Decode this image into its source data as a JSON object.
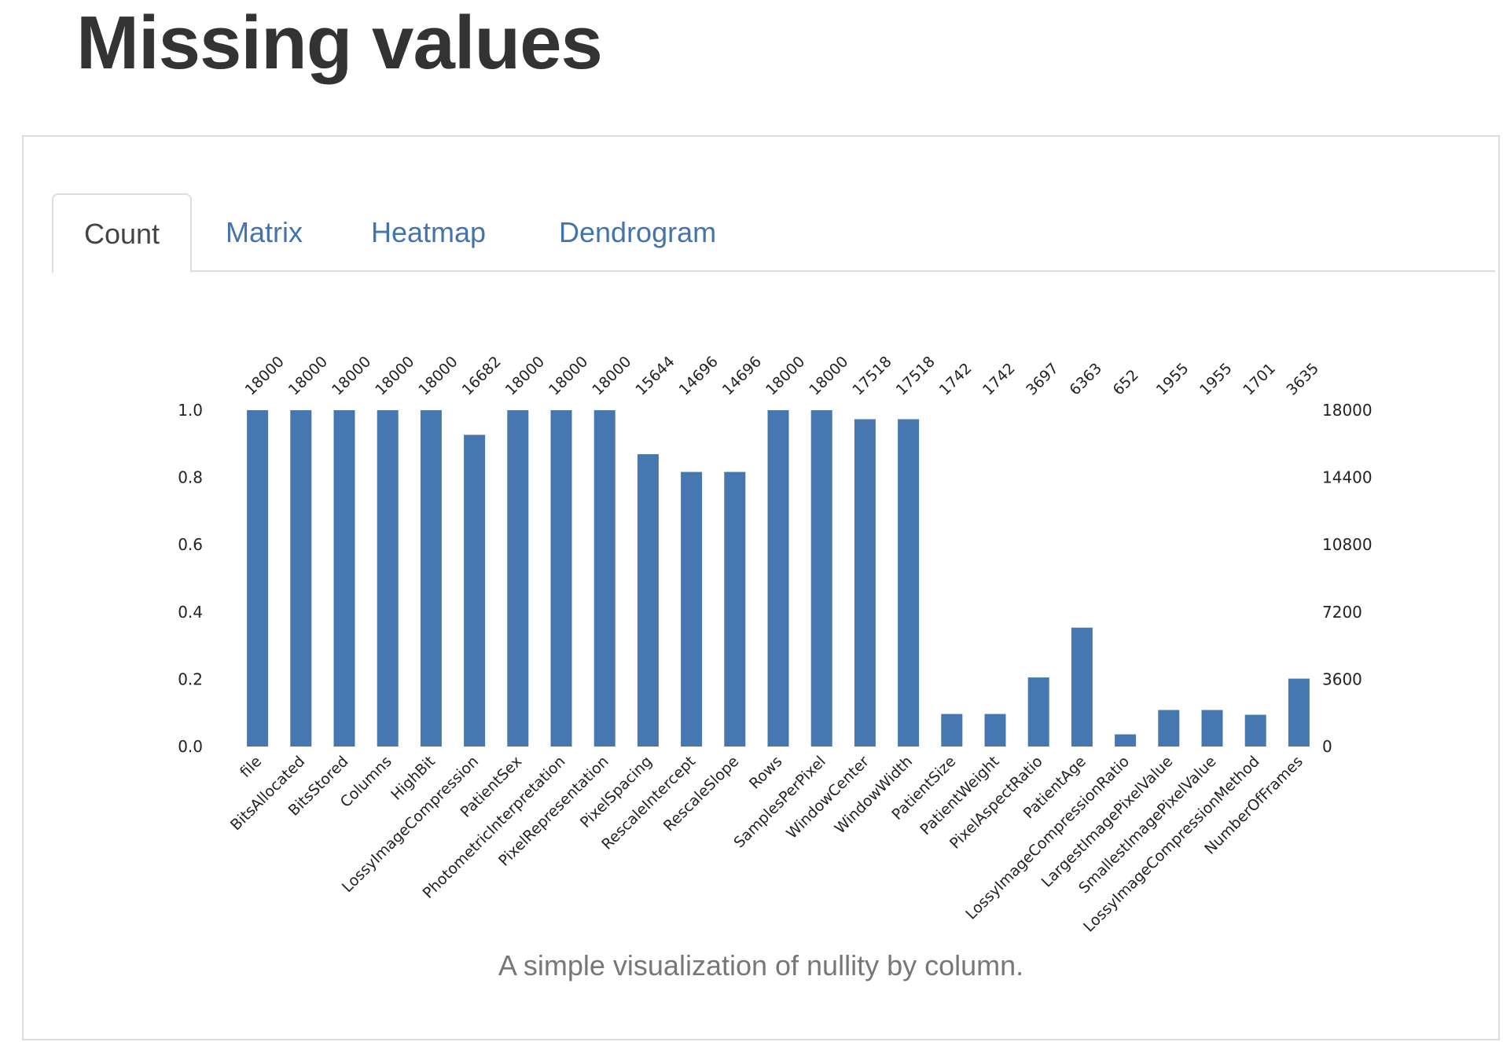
{
  "page": {
    "title": "Missing values"
  },
  "tabs": [
    {
      "label": "Count",
      "active": true
    },
    {
      "label": "Matrix",
      "active": false
    },
    {
      "label": "Heatmap",
      "active": false
    },
    {
      "label": "Dendrogram",
      "active": false
    }
  ],
  "colors": {
    "bar": "#4677b0",
    "link": "#4374ae",
    "text": "#333333",
    "caption": "#777777",
    "border": "#dddddd"
  },
  "caption": "A simple visualization of nullity by column.",
  "chart_data": {
    "type": "bar",
    "title": "",
    "xlabel": "",
    "ylabel": "",
    "categories": [
      "file",
      "BitsAllocated",
      "BitsStored",
      "Columns",
      "HighBit",
      "LossyImageCompression",
      "PatientSex",
      "PhotometricInterpretation",
      "PixelRepresentation",
      "PixelSpacing",
      "RescaleIntercept",
      "RescaleSlope",
      "Rows",
      "SamplesPerPixel",
      "WindowCenter",
      "WindowWidth",
      "PatientSize",
      "PatientWeight",
      "PixelAspectRatio",
      "PatientAge",
      "LossyImageCompressionRatio",
      "LargestImagePixelValue",
      "SmallestImagePixelValue",
      "LossyImageCompressionMethod",
      "NumberOfFrames"
    ],
    "values": [
      18000,
      18000,
      18000,
      18000,
      18000,
      16682,
      18000,
      18000,
      18000,
      15644,
      14696,
      14696,
      18000,
      18000,
      17518,
      17518,
      1742,
      1742,
      3697,
      6363,
      652,
      1955,
      1955,
      1701,
      3635
    ],
    "total": 18000,
    "left_axis": {
      "ylim": [
        0,
        1
      ],
      "ticks": [
        "0.0",
        "0.2",
        "0.4",
        "0.6",
        "0.8",
        "1.0"
      ]
    },
    "right_axis": {
      "ylim": [
        0,
        18000
      ],
      "ticks": [
        "0",
        "3600",
        "7200",
        "10800",
        "14400",
        "18000"
      ]
    },
    "top_labels": "counts",
    "grid": false
  }
}
